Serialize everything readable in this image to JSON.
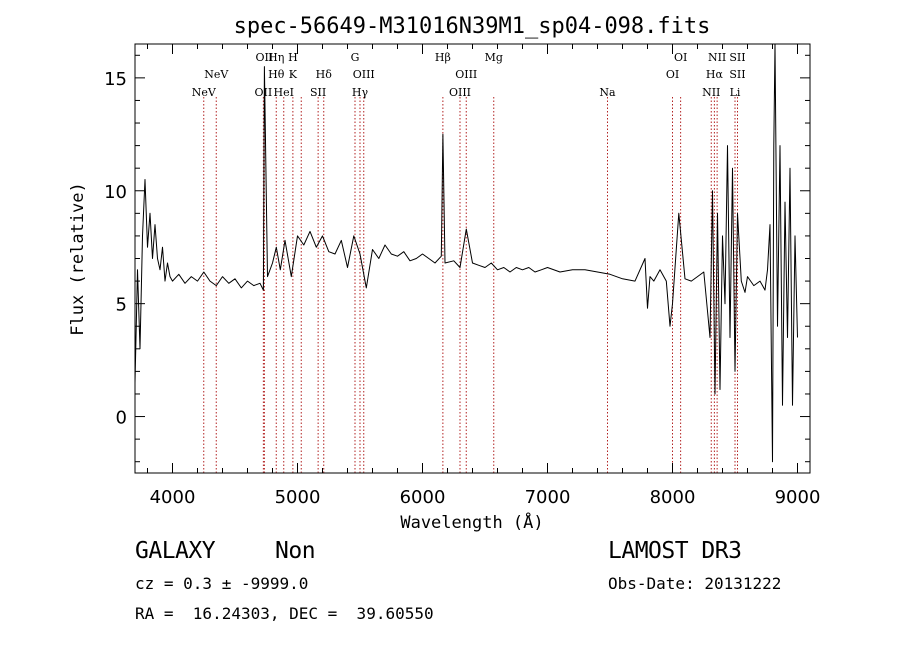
{
  "chart_data": {
    "type": "line",
    "title": "spec-56649-M31016N39M1_sp04-098.fits",
    "xlabel": "Wavelength (Å)",
    "ylabel": "Flux (relative)",
    "xlim": [
      3700,
      9100
    ],
    "ylim": [
      -2.5,
      16.5
    ],
    "xticks": [
      4000,
      5000,
      6000,
      7000,
      8000,
      9000
    ],
    "yticks": [
      0,
      5,
      10,
      15
    ],
    "xtick_labels": [
      "4000",
      "5000",
      "6000",
      "7000",
      "8000",
      "9000"
    ],
    "ytick_labels": [
      "0",
      "5",
      "10",
      "15"
    ],
    "spectrum": {
      "x": [
        3700,
        3720,
        3740,
        3760,
        3780,
        3800,
        3820,
        3840,
        3860,
        3880,
        3900,
        3920,
        3940,
        3960,
        3980,
        4000,
        4050,
        4100,
        4150,
        4200,
        4250,
        4300,
        4350,
        4400,
        4450,
        4500,
        4550,
        4600,
        4650,
        4700,
        4727,
        4735,
        4760,
        4800,
        4830,
        4862,
        4900,
        4950,
        5000,
        5050,
        5100,
        5150,
        5200,
        5250,
        5300,
        5350,
        5400,
        5450,
        5500,
        5550,
        5600,
        5650,
        5700,
        5750,
        5800,
        5850,
        5900,
        5950,
        6000,
        6050,
        6100,
        6150,
        6163,
        6180,
        6250,
        6300,
        6350,
        6400,
        6450,
        6500,
        6550,
        6600,
        6650,
        6700,
        6750,
        6800,
        6850,
        6900,
        6950,
        7000,
        7100,
        7200,
        7300,
        7400,
        7500,
        7600,
        7700,
        7780,
        7800,
        7820,
        7850,
        7900,
        7950,
        7980,
        8000,
        8050,
        8100,
        8150,
        8200,
        8250,
        8300,
        8320,
        8340,
        8360,
        8380,
        8400,
        8420,
        8440,
        8460,
        8480,
        8500,
        8520,
        8550,
        8580,
        8600,
        8650,
        8700,
        8740,
        8760,
        8780,
        8800,
        8810,
        8820,
        8840,
        8860,
        8880,
        8900,
        8920,
        8940,
        8960,
        8980,
        9000
      ],
      "y": [
        1.5,
        6.5,
        3.0,
        8.0,
        10.5,
        7.5,
        9.0,
        7.0,
        8.5,
        7.0,
        6.5,
        7.5,
        6.0,
        6.8,
        6.2,
        6.0,
        6.3,
        5.9,
        6.2,
        6.0,
        6.4,
        6.0,
        5.8,
        6.2,
        5.9,
        6.1,
        5.7,
        6.0,
        5.8,
        5.9,
        5.6,
        15.5,
        6.2,
        6.8,
        7.5,
        6.5,
        7.8,
        6.2,
        8.0,
        7.6,
        8.2,
        7.5,
        8.0,
        7.3,
        7.2,
        7.8,
        6.6,
        8.0,
        7.2,
        5.7,
        7.4,
        7.0,
        7.6,
        7.2,
        7.1,
        7.3,
        6.9,
        7.0,
        7.2,
        7.0,
        6.8,
        7.1,
        12.5,
        6.8,
        6.9,
        6.6,
        8.3,
        6.8,
        6.7,
        6.6,
        6.8,
        6.5,
        6.6,
        6.4,
        6.6,
        6.5,
        6.6,
        6.4,
        6.5,
        6.6,
        6.4,
        6.5,
        6.5,
        6.4,
        6.3,
        6.1,
        6.0,
        7.0,
        4.8,
        6.2,
        6.0,
        6.5,
        6.0,
        4.0,
        5.0,
        9.0,
        6.1,
        6.0,
        6.2,
        6.4,
        3.5,
        10.0,
        1.0,
        9.0,
        1.2,
        8.0,
        5.0,
        12.0,
        3.5,
        11.0,
        2.0,
        9.0,
        6.0,
        5.5,
        6.2,
        5.8,
        6.0,
        5.6,
        6.5,
        8.5,
        -2.0,
        12.0,
        16.5,
        4.0,
        12.0,
        0.5,
        9.5,
        3.5,
        11.0,
        0.5,
        8.0,
        3.5
      ]
    },
    "lines": [
      {
        "wl": 4250,
        "top": "",
        "bottom": "NeV"
      },
      {
        "wl": 4350,
        "top": "NeV",
        "bottom": ""
      },
      {
        "wl": 4727,
        "top": "",
        "bottom": "OII"
      },
      {
        "wl": 4735,
        "top": "OII",
        "bottom": ""
      },
      {
        "wl": 4830,
        "top": "Hη",
        "bottom": "Hθ"
      },
      {
        "wl": 4890,
        "top": "",
        "bottom": "HeI"
      },
      {
        "wl": 4963,
        "top": "H",
        "bottom": "K"
      },
      {
        "wl": 5030,
        "top": "",
        "bottom": ""
      },
      {
        "wl": 5165,
        "top": "",
        "bottom": "SII"
      },
      {
        "wl": 5210,
        "top": "Hδ",
        "bottom": ""
      },
      {
        "wl": 5460,
        "top": "G",
        "bottom": ""
      },
      {
        "wl": 5500,
        "top": "",
        "bottom": "Hγ"
      },
      {
        "wl": 5530,
        "top": "OIII",
        "bottom": ""
      },
      {
        "wl": 6163,
        "top": "Hβ",
        "bottom": ""
      },
      {
        "wl": 6300,
        "top": "",
        "bottom": "OIII"
      },
      {
        "wl": 6350,
        "top": "OIII",
        "bottom": ""
      },
      {
        "wl": 6570,
        "top": "Mg",
        "bottom": ""
      },
      {
        "wl": 7480,
        "top": "",
        "bottom": "Na"
      },
      {
        "wl": 8000,
        "top": "OI",
        "bottom": ""
      },
      {
        "wl": 8065,
        "top": "OI",
        "bottom": ""
      },
      {
        "wl": 8310,
        "top": "",
        "bottom": "NII"
      },
      {
        "wl": 8335,
        "top": "Hα",
        "bottom": ""
      },
      {
        "wl": 8357,
        "top": "NII",
        "bottom": ""
      },
      {
        "wl": 8500,
        "top": "SII",
        "bottom": "Li"
      },
      {
        "wl": 8520,
        "top": "SII",
        "bottom": ""
      }
    ],
    "line_labels_display": {
      "top": [
        {
          "wl": 4735,
          "text": "OII"
        },
        {
          "wl": 4830,
          "text": "Hη"
        },
        {
          "wl": 4963,
          "text": "H"
        },
        {
          "wl": 5460,
          "text": "G"
        },
        {
          "wl": 6163,
          "text": "Hβ"
        },
        {
          "wl": 6570,
          "text": "Mg"
        },
        {
          "wl": 8065,
          "text": "OI"
        },
        {
          "wl": 8357,
          "text": "NII"
        },
        {
          "wl": 8520,
          "text": "SII"
        }
      ],
      "mid": [
        {
          "wl": 4350,
          "text": "NeV"
        },
        {
          "wl": 4830,
          "text": "Hθ"
        },
        {
          "wl": 4963,
          "text": "K"
        },
        {
          "wl": 5210,
          "text": "Hδ"
        },
        {
          "wl": 5530,
          "text": "OIII"
        },
        {
          "wl": 6350,
          "text": "OIII"
        },
        {
          "wl": 8000,
          "text": "OI"
        },
        {
          "wl": 8335,
          "text": "Hα"
        },
        {
          "wl": 8520,
          "text": "SII"
        }
      ],
      "low": [
        {
          "wl": 4250,
          "text": "NeV"
        },
        {
          "wl": 4727,
          "text": "OII"
        },
        {
          "wl": 4890,
          "text": "HeI"
        },
        {
          "wl": 5165,
          "text": "SII"
        },
        {
          "wl": 5500,
          "text": "Hγ"
        },
        {
          "wl": 6300,
          "text": "OIII"
        },
        {
          "wl": 7480,
          "text": "Na"
        },
        {
          "wl": 8310,
          "text": "NII"
        },
        {
          "wl": 8500,
          "text": "Li"
        }
      ]
    },
    "line_color": "#b22222",
    "trace_color": "#000000"
  },
  "footer": {
    "class_label": "GALAXY",
    "subclass_label": "Non",
    "survey_label": "LAMOST DR3",
    "cz_text": "cz = 0.3 ± -9999.0",
    "obs_date_text": "Obs-Date: 20131222",
    "coords_text": "RA =  16.24303, DEC =  39.60550"
  }
}
